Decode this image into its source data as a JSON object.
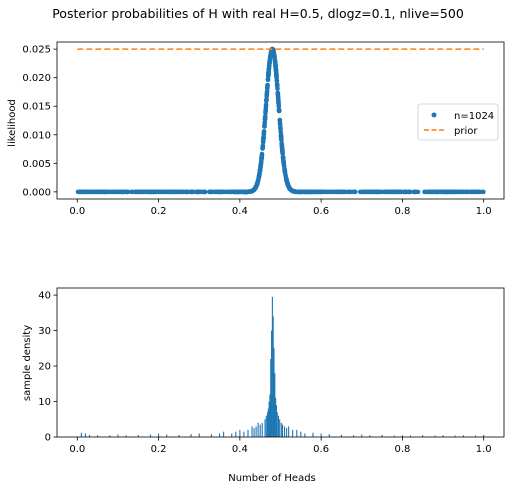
{
  "figure_title": "Posterior probabilities of H with real H=0.5, dlogz=0.1, nlive=500",
  "colors": {
    "series": "#1f77b4",
    "prior": "#ff7f0e"
  },
  "chart_data": [
    {
      "type": "scatter",
      "ylabel": "likelihood",
      "xlabel": "",
      "xlim": [
        -0.05,
        1.05
      ],
      "ylim": [
        -0.00125,
        0.02625
      ],
      "xticks": [
        0.0,
        0.2,
        0.4,
        0.6,
        0.8,
        1.0
      ],
      "xtick_labels": [
        "0.0",
        "0.2",
        "0.4",
        "0.6",
        "0.8",
        "1.0"
      ],
      "yticks": [
        0.0,
        0.005,
        0.01,
        0.015,
        0.02,
        0.025
      ],
      "ytick_labels": [
        "0.000",
        "0.005",
        "0.010",
        "0.015",
        "0.020",
        "0.025"
      ],
      "legend_position": "center-right",
      "series": [
        {
          "name": "n=1024",
          "kind": "points",
          "color": "#1f77b4",
          "peak_x": 0.48,
          "peak_y": 0.025,
          "spread": 0.0156,
          "x_range": [
            0.0,
            1.0
          ]
        },
        {
          "name": "prior",
          "kind": "dashed-line",
          "color": "#ff7f0e",
          "x": [
            0.0,
            1.0
          ],
          "y": [
            0.025,
            0.025
          ]
        }
      ]
    },
    {
      "type": "bar",
      "ylabel": "sample density",
      "xlabel": "Number of Heads",
      "xlim": [
        -0.05,
        1.05
      ],
      "ylim": [
        0,
        42
      ],
      "xticks": [
        0.0,
        0.2,
        0.4,
        0.6,
        0.8,
        1.0
      ],
      "xtick_labels": [
        "0.0",
        "0.2",
        "0.4",
        "0.6",
        "0.8",
        "1.0"
      ],
      "yticks": [
        0,
        10,
        20,
        30,
        40
      ],
      "ytick_labels": [
        "0",
        "10",
        "20",
        "30",
        "40"
      ],
      "color": "#1f77b4",
      "bins": [
        [
          0.47,
          8
        ],
        [
          0.472,
          10
        ],
        [
          0.474,
          12
        ],
        [
          0.476,
          22
        ],
        [
          0.478,
          30
        ],
        [
          0.48,
          39.5
        ],
        [
          0.482,
          34
        ],
        [
          0.484,
          25
        ],
        [
          0.486,
          18
        ],
        [
          0.488,
          11
        ],
        [
          0.49,
          9
        ],
        [
          0.492,
          7
        ],
        [
          0.465,
          6
        ],
        [
          0.468,
          7
        ],
        [
          0.462,
          5
        ],
        [
          0.495,
          6
        ],
        [
          0.498,
          5
        ],
        [
          0.502,
          4
        ],
        [
          0.455,
          4
        ],
        [
          0.45,
          3.5
        ],
        [
          0.445,
          4
        ],
        [
          0.44,
          3
        ],
        [
          0.435,
          2.5
        ],
        [
          0.43,
          3
        ],
        [
          0.505,
          3.5
        ],
        [
          0.51,
          3
        ],
        [
          0.515,
          2.5
        ],
        [
          0.52,
          3
        ],
        [
          0.53,
          2
        ],
        [
          0.54,
          2
        ],
        [
          0.42,
          2
        ],
        [
          0.41,
          1.5
        ],
        [
          0.4,
          2
        ],
        [
          0.39,
          1.5
        ],
        [
          0.38,
          1
        ],
        [
          0.36,
          1.5
        ],
        [
          0.55,
          1.5
        ],
        [
          0.56,
          1
        ],
        [
          0.58,
          1.2
        ],
        [
          0.6,
          1
        ],
        [
          0.62,
          0.8
        ],
        [
          0.35,
          1
        ],
        [
          0.33,
          0.8
        ],
        [
          0.3,
          1
        ],
        [
          0.28,
          0.8
        ],
        [
          0.25,
          0.6
        ],
        [
          0.22,
          0.7
        ],
        [
          0.2,
          1
        ],
        [
          0.18,
          0.7
        ],
        [
          0.15,
          0.6
        ],
        [
          0.12,
          0.5
        ],
        [
          0.1,
          0.7
        ],
        [
          0.08,
          0.5
        ],
        [
          0.05,
          0.5
        ],
        [
          0.02,
          1
        ],
        [
          0.01,
          1.2
        ],
        [
          0.03,
          0.6
        ],
        [
          0.65,
          0.6
        ],
        [
          0.68,
          0.5
        ],
        [
          0.7,
          0.7
        ],
        [
          0.72,
          0.5
        ],
        [
          0.75,
          0.6
        ],
        [
          0.78,
          0.4
        ],
        [
          0.8,
          0.5
        ],
        [
          0.82,
          0.4
        ],
        [
          0.85,
          0.5
        ],
        [
          0.88,
          0.4
        ],
        [
          0.9,
          0.5
        ],
        [
          0.93,
          0.4
        ],
        [
          0.95,
          0.5
        ],
        [
          0.98,
          0.4
        ],
        [
          1.0,
          0.6
        ]
      ]
    }
  ]
}
